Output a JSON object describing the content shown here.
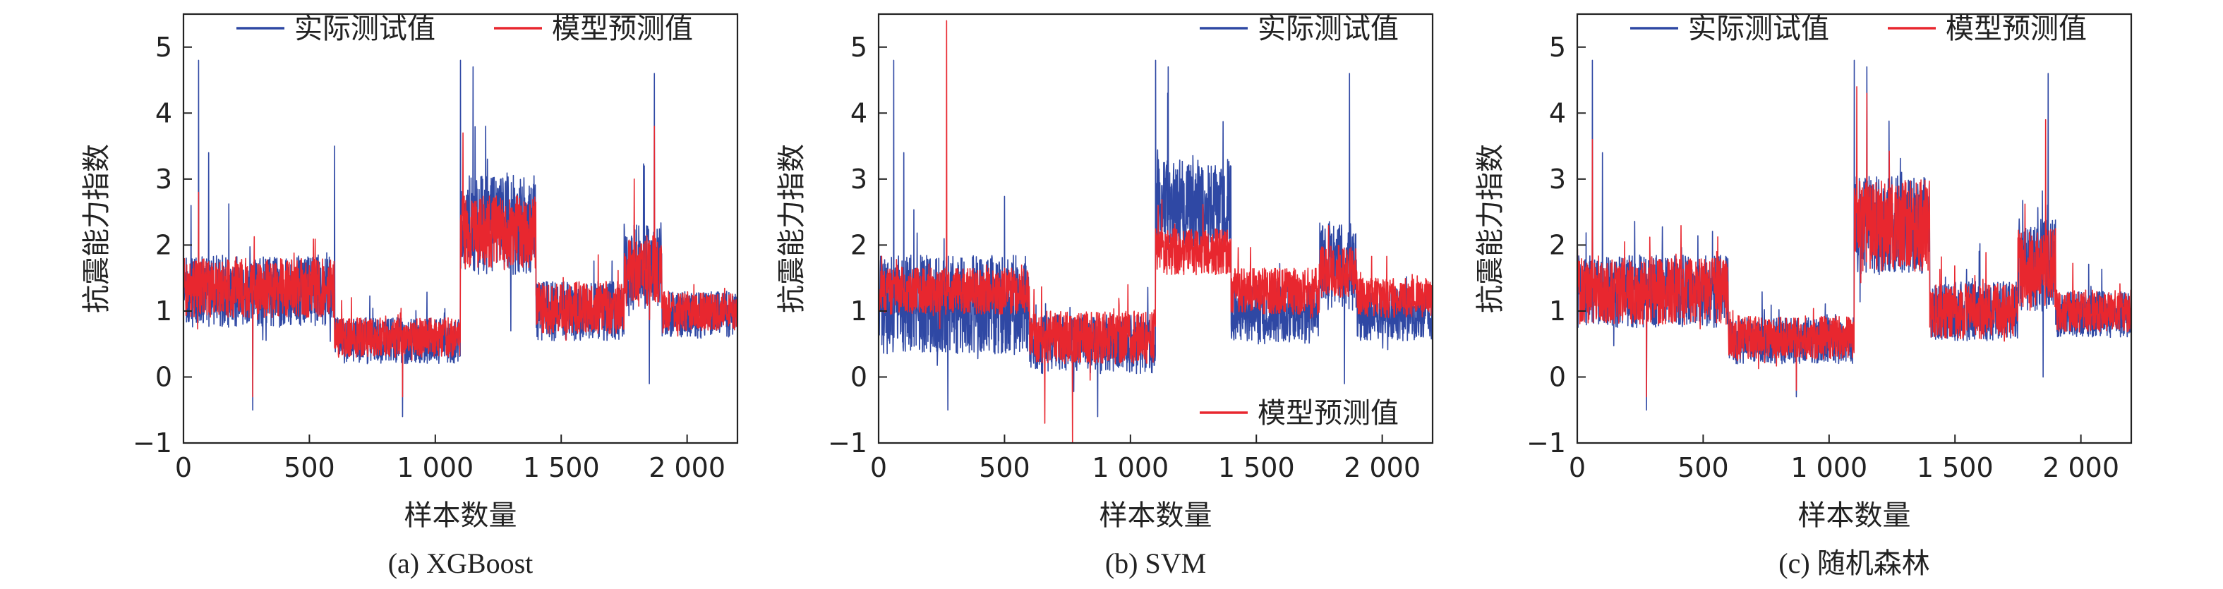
{
  "figure": {
    "panels_order": [
      "a",
      "b",
      "c"
    ]
  },
  "chart_data": [
    {
      "type": "line",
      "panel_id": "a",
      "caption": "(a) XGBoost",
      "xlabel": "样本数量",
      "ylabel": "抗震能力指数",
      "xlim": [
        0,
        2200
      ],
      "ylim": [
        -1,
        5.5
      ],
      "xticks": [
        0,
        500,
        1000,
        1500,
        2000
      ],
      "xtick_labels": [
        "0",
        "500",
        "1 000",
        "1 500",
        "2 000"
      ],
      "yticks": [
        -1,
        0,
        1,
        2,
        3,
        4,
        5
      ],
      "ytick_labels": [
        "−1",
        "0",
        "1",
        "2",
        "3",
        "4",
        "5"
      ],
      "legend": {
        "position": "top",
        "entries": [
          "实际测试值",
          "模型预测值"
        ]
      },
      "series": [
        {
          "name": "实际测试值",
          "color": "#2f48a4",
          "segments": [
            {
              "x_start": 0,
              "x_end": 600,
              "base": 1.3,
              "amplitude": 0.55
            },
            {
              "x_start": 600,
              "x_end": 1100,
              "base": 0.55,
              "amplitude": 0.35
            },
            {
              "x_start": 1100,
              "x_end": 1400,
              "base": 2.3,
              "amplitude": 0.75
            },
            {
              "x_start": 1400,
              "x_end": 1750,
              "base": 1.0,
              "amplitude": 0.45
            },
            {
              "x_start": 1750,
              "x_end": 1900,
              "base": 1.7,
              "amplitude": 0.7
            },
            {
              "x_start": 1900,
              "x_end": 2200,
              "base": 0.95,
              "amplitude": 0.35
            }
          ],
          "peaks": [
            [
              30,
              2.6
            ],
            [
              60,
              4.8
            ],
            [
              100,
              3.4
            ],
            [
              600,
              3.5
            ],
            [
              1100,
              4.8
            ],
            [
              1150,
              4.7
            ],
            [
              1200,
              3.8
            ],
            [
              1870,
              4.6
            ],
            [
              1830,
              3.2
            ]
          ],
          "dips": [
            [
              275,
              -0.5
            ],
            [
              870,
              -0.6
            ],
            [
              1300,
              0.7
            ],
            [
              1850,
              -0.1
            ]
          ]
        },
        {
          "name": "模型预测值",
          "color": "#e8272f",
          "segments": [
            {
              "x_start": 0,
              "x_end": 600,
              "base": 1.35,
              "amplitude": 0.45
            },
            {
              "x_start": 600,
              "x_end": 1100,
              "base": 0.6,
              "amplitude": 0.3
            },
            {
              "x_start": 1100,
              "x_end": 1400,
              "base": 2.2,
              "amplitude": 0.55
            },
            {
              "x_start": 1400,
              "x_end": 1750,
              "base": 1.05,
              "amplitude": 0.4
            },
            {
              "x_start": 1750,
              "x_end": 1900,
              "base": 1.6,
              "amplitude": 0.55
            },
            {
              "x_start": 1900,
              "x_end": 2200,
              "base": 1.0,
              "amplitude": 0.3
            }
          ],
          "peaks": [
            [
              60,
              2.8
            ],
            [
              1110,
              3.7
            ],
            [
              1870,
              3.8
            ],
            [
              1790,
              3.0
            ]
          ],
          "dips": [
            [
              275,
              -0.3
            ],
            [
              870,
              -0.3
            ]
          ]
        }
      ]
    },
    {
      "type": "line",
      "panel_id": "b",
      "caption": "(b) SVM",
      "xlabel": "样本数量",
      "ylabel": "抗震能力指数",
      "xlim": [
        0,
        2200
      ],
      "ylim": [
        -1,
        5.5
      ],
      "xticks": [
        0,
        500,
        1000,
        1500,
        2000
      ],
      "xtick_labels": [
        "0",
        "500",
        "1 000",
        "1 500",
        "2 000"
      ],
      "yticks": [
        -1,
        0,
        1,
        2,
        3,
        4,
        5
      ],
      "ytick_labels": [
        "−1",
        "0",
        "1",
        "2",
        "3",
        "4",
        "5"
      ],
      "legend": {
        "position": "split",
        "entries": [
          "实际测试值",
          "模型预测值"
        ]
      },
      "series": [
        {
          "name": "实际测试值",
          "color": "#2f48a4",
          "segments": [
            {
              "x_start": 0,
              "x_end": 600,
              "base": 1.1,
              "amplitude": 0.75
            },
            {
              "x_start": 600,
              "x_end": 1100,
              "base": 0.5,
              "amplitude": 0.45
            },
            {
              "x_start": 1100,
              "x_end": 1400,
              "base": 2.6,
              "amplitude": 0.7
            },
            {
              "x_start": 1400,
              "x_end": 1750,
              "base": 0.95,
              "amplitude": 0.45
            },
            {
              "x_start": 1750,
              "x_end": 1900,
              "base": 1.7,
              "amplitude": 0.7
            },
            {
              "x_start": 1900,
              "x_end": 2200,
              "base": 0.95,
              "amplitude": 0.4
            }
          ],
          "peaks": [
            [
              60,
              4.8
            ],
            [
              100,
              3.4
            ],
            [
              1100,
              4.8
            ],
            [
              1150,
              4.7
            ],
            [
              1870,
              4.6
            ]
          ],
          "dips": [
            [
              275,
              -0.5
            ],
            [
              870,
              -0.6
            ],
            [
              1850,
              -0.1
            ]
          ]
        },
        {
          "name": "模型预测值",
          "color": "#e8272f",
          "segments": [
            {
              "x_start": 0,
              "x_end": 600,
              "base": 1.3,
              "amplitude": 0.35
            },
            {
              "x_start": 600,
              "x_end": 1100,
              "base": 0.6,
              "amplitude": 0.4
            },
            {
              "x_start": 1100,
              "x_end": 1400,
              "base": 1.9,
              "amplitude": 0.35
            },
            {
              "x_start": 1400,
              "x_end": 1750,
              "base": 1.3,
              "amplitude": 0.35
            },
            {
              "x_start": 1750,
              "x_end": 1900,
              "base": 1.6,
              "amplitude": 0.4
            },
            {
              "x_start": 1900,
              "x_end": 2200,
              "base": 1.2,
              "amplitude": 0.3
            }
          ],
          "peaks": [
            [
              270,
              5.4
            ],
            [
              1110,
              2.6
            ]
          ],
          "dips": [
            [
              770,
              -1.0
            ],
            [
              660,
              -0.7
            ]
          ]
        }
      ]
    },
    {
      "type": "line",
      "panel_id": "c",
      "caption": "(c) 随机森林",
      "xlabel": "样本数量",
      "ylabel": "抗震能力指数",
      "xlim": [
        0,
        2200
      ],
      "ylim": [
        -1,
        5.5
      ],
      "xticks": [
        0,
        500,
        1000,
        1500,
        2000
      ],
      "xtick_labels": [
        "0",
        "500",
        "1 000",
        "1 500",
        "2 000"
      ],
      "yticks": [
        -1,
        0,
        1,
        2,
        3,
        4,
        5
      ],
      "ytick_labels": [
        "−1",
        "0",
        "1",
        "2",
        "3",
        "4",
        "5"
      ],
      "legend": {
        "position": "top",
        "entries": [
          "实际测试值",
          "模型预测值"
        ]
      },
      "series": [
        {
          "name": "实际测试值",
          "color": "#2f48a4",
          "segments": [
            {
              "x_start": 0,
              "x_end": 600,
              "base": 1.3,
              "amplitude": 0.55
            },
            {
              "x_start": 600,
              "x_end": 1100,
              "base": 0.55,
              "amplitude": 0.35
            },
            {
              "x_start": 1100,
              "x_end": 1400,
              "base": 2.3,
              "amplitude": 0.75
            },
            {
              "x_start": 1400,
              "x_end": 1750,
              "base": 1.0,
              "amplitude": 0.45
            },
            {
              "x_start": 1750,
              "x_end": 1900,
              "base": 1.7,
              "amplitude": 0.7
            },
            {
              "x_start": 1900,
              "x_end": 2200,
              "base": 0.95,
              "amplitude": 0.35
            }
          ],
          "peaks": [
            [
              60,
              4.8
            ],
            [
              100,
              3.4
            ],
            [
              1100,
              4.8
            ],
            [
              1150,
              4.7
            ],
            [
              1870,
              4.6
            ]
          ],
          "dips": [
            [
              275,
              -0.5
            ],
            [
              870,
              -0.3
            ],
            [
              1850,
              0.0
            ]
          ]
        },
        {
          "name": "模型预测值",
          "color": "#e8272f",
          "segments": [
            {
              "x_start": 0,
              "x_end": 600,
              "base": 1.3,
              "amplitude": 0.5
            },
            {
              "x_start": 600,
              "x_end": 1100,
              "base": 0.6,
              "amplitude": 0.33
            },
            {
              "x_start": 1100,
              "x_end": 1400,
              "base": 2.3,
              "amplitude": 0.7
            },
            {
              "x_start": 1400,
              "x_end": 1750,
              "base": 1.0,
              "amplitude": 0.42
            },
            {
              "x_start": 1750,
              "x_end": 1900,
              "base": 1.65,
              "amplitude": 0.6
            },
            {
              "x_start": 1900,
              "x_end": 2200,
              "base": 1.0,
              "amplitude": 0.32
            }
          ],
          "peaks": [
            [
              60,
              3.6
            ],
            [
              1110,
              4.4
            ],
            [
              1860,
              3.9
            ],
            [
              1150,
              4.3
            ]
          ],
          "dips": [
            [
              275,
              -0.3
            ],
            [
              870,
              -0.2
            ]
          ]
        }
      ]
    }
  ]
}
